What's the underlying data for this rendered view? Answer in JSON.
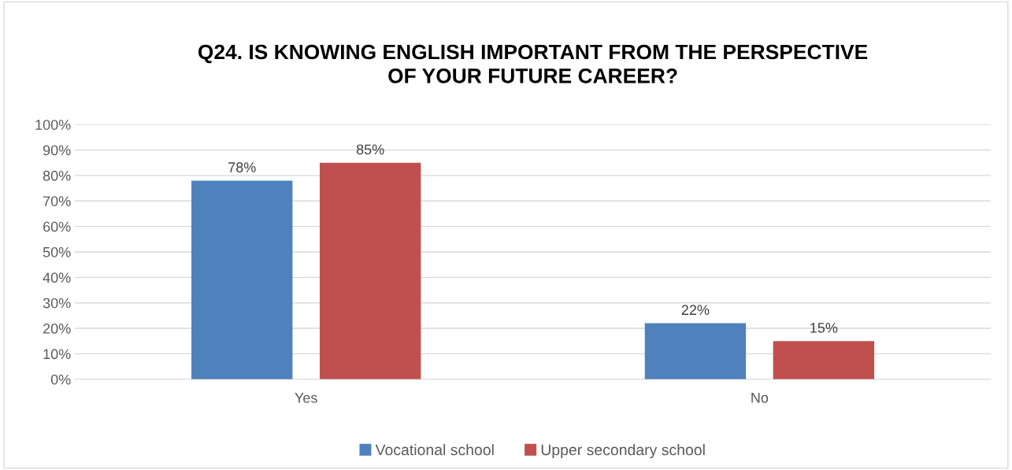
{
  "chart_data": {
    "type": "bar",
    "title": "Q24. IS KNOWING ENGLISH IMPORTANT FROM THE PERSPECTIVE\nOF YOUR FUTURE CAREER?",
    "categories": [
      "Yes",
      "No"
    ],
    "series": [
      {
        "name": "Vocational school",
        "color": "#4f81bd",
        "values": [
          78,
          22
        ],
        "value_labels": [
          "78%",
          "22%"
        ]
      },
      {
        "name": "Upper secondary school",
        "color": "#c0504d",
        "values": [
          85,
          15
        ],
        "value_labels": [
          "85%",
          "15%"
        ]
      }
    ],
    "ylim": [
      0,
      100
    ],
    "yticks": [
      {
        "value": 0,
        "label": "0%"
      },
      {
        "value": 10,
        "label": "10%"
      },
      {
        "value": 20,
        "label": "20%"
      },
      {
        "value": 30,
        "label": "30%"
      },
      {
        "value": 40,
        "label": "40%"
      },
      {
        "value": 50,
        "label": "50%"
      },
      {
        "value": 60,
        "label": "60%"
      },
      {
        "value": 70,
        "label": "70%"
      },
      {
        "value": 80,
        "label": "80%"
      },
      {
        "value": 90,
        "label": "90%"
      },
      {
        "value": 100,
        "label": "100%"
      }
    ],
    "grid": "y",
    "legend": "bottom"
  }
}
